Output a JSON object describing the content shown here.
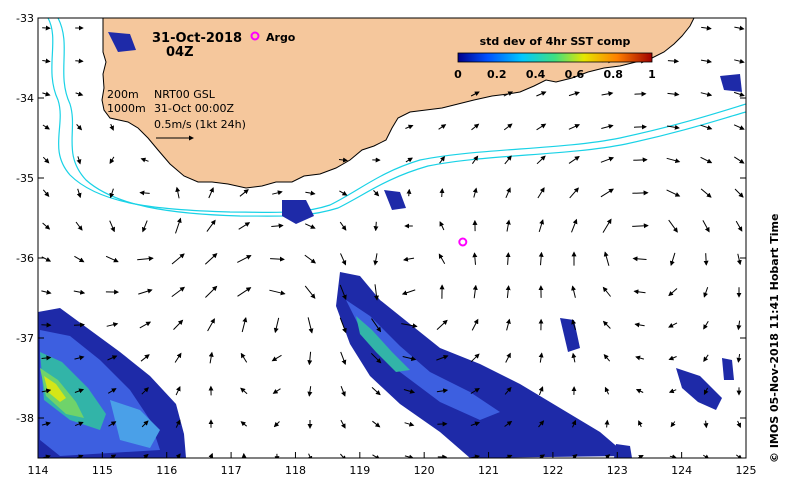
{
  "header": {
    "date": "31-Oct-2018",
    "time": "04Z",
    "argo_label": "Argo"
  },
  "info": {
    "iso_200": "200m",
    "iso_1000": "1000m",
    "product": "NRT00 GSL",
    "product_time": "31-Oct 00:00Z",
    "scale": "0.5m/s (1kt 24h)"
  },
  "colorbar": {
    "title": "std dev of 4hr SST comp",
    "ticks": [
      "0",
      "0.2",
      "0.4",
      "0.6",
      "0.8",
      "1"
    ]
  },
  "axes": {
    "lon_ticks": [
      "114",
      "115",
      "116",
      "117",
      "118",
      "119",
      "120",
      "121",
      "122",
      "123",
      "124",
      "125"
    ],
    "lat_ticks": [
      "-33",
      "-34",
      "-35",
      "-36",
      "-37",
      "-38"
    ],
    "lon_range": [
      114,
      125
    ],
    "lat_range": [
      -38.5,
      -33
    ]
  },
  "argo_float": {
    "lon": 120.6,
    "lat": -35.8
  },
  "credit": "© IMOS 05-Nov-2018 11:41 Hobart Time",
  "colors": {
    "land": "#f5c79c",
    "isobath": "#19d2e6",
    "argo": "#ff00ff",
    "data_low": "#1a1a8c",
    "data_high": "#d4e617"
  }
}
